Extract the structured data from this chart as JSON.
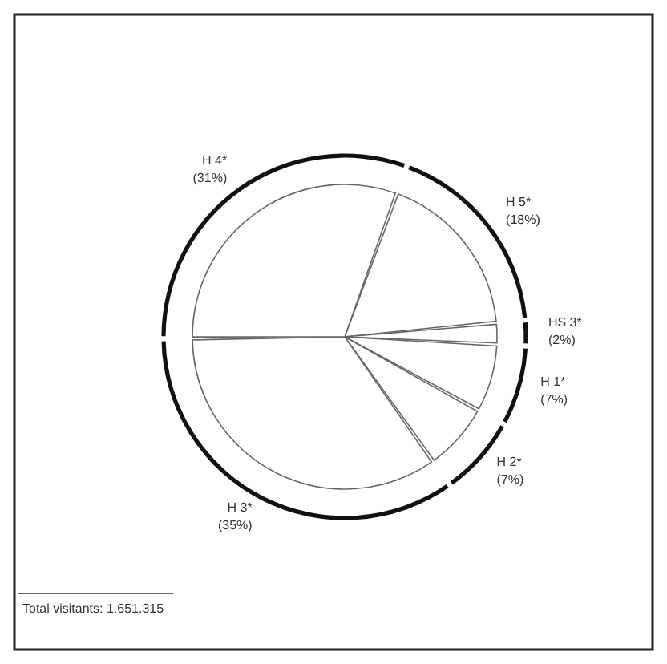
{
  "chart_data": {
    "type": "donut",
    "categories": [
      "H 5*",
      "HS 3*",
      "H 1*",
      "H 2*",
      "H 3*",
      "H 4*"
    ],
    "series": [
      {
        "color": "#111111",
        "values": [
          18,
          2,
          7,
          7,
          35,
          31
        ]
      },
      {
        "color": "#ffffff",
        "values": [
          18,
          2,
          7,
          7,
          35,
          31
        ]
      }
    ],
    "value_labels": [
      "(18%)",
      "(2%)",
      "(7%)",
      "(7%)",
      "(35%)",
      "(31%)"
    ],
    "annotations": [
      "Total visitants: 1.651.315"
    ]
  }
}
